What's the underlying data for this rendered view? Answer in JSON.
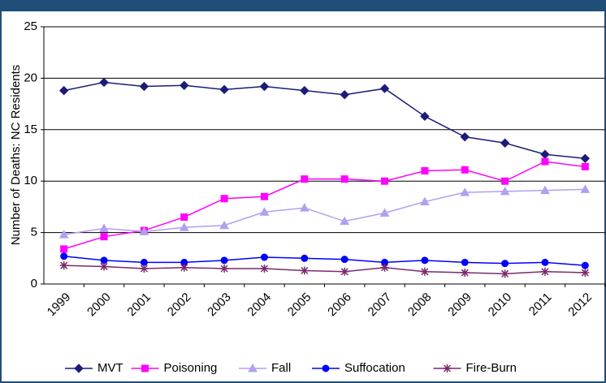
{
  "chart_data": {
    "type": "line",
    "y_label": "Number of Deaths: NC Residents",
    "categories": [
      "1999",
      "2000",
      "2001",
      "2002",
      "2003",
      "2004",
      "2005",
      "2006",
      "2007",
      "2008",
      "2009",
      "2010",
      "2011",
      "2012"
    ],
    "series": [
      {
        "name": "MVT",
        "color": "#1c1c78",
        "marker": "diamond",
        "values": [
          18.8,
          19.6,
          19.2,
          19.3,
          18.9,
          19.2,
          18.8,
          18.4,
          19.0,
          16.3,
          14.3,
          13.7,
          12.6,
          12.2
        ]
      },
      {
        "name": "Poisoning",
        "color": "#ff00ff",
        "marker": "square",
        "values": [
          3.4,
          4.6,
          5.2,
          6.5,
          8.3,
          8.5,
          10.2,
          10.2,
          10.0,
          11.0,
          11.1,
          10.0,
          11.9,
          11.4
        ]
      },
      {
        "name": "Fall",
        "color": "#b49ef0",
        "marker": "triangle",
        "values": [
          4.8,
          5.4,
          5.1,
          5.5,
          5.7,
          7.0,
          7.4,
          6.1,
          6.9,
          8.0,
          8.9,
          9.0,
          9.1,
          9.2
        ]
      },
      {
        "name": "Suffocation",
        "color": "#0000ff",
        "marker": "circle",
        "values": [
          2.7,
          2.3,
          2.1,
          2.1,
          2.3,
          2.6,
          2.5,
          2.4,
          2.1,
          2.3,
          2.1,
          2.0,
          2.1,
          1.8
        ]
      },
      {
        "name": "Fire-Burn",
        "color": "#7a2a6c",
        "marker": "star",
        "values": [
          1.8,
          1.7,
          1.5,
          1.6,
          1.5,
          1.5,
          1.3,
          1.2,
          1.6,
          1.2,
          1.1,
          1.0,
          1.2,
          1.1
        ]
      }
    ],
    "ylim": [
      0,
      25
    ],
    "yticks": [
      0,
      5,
      10,
      15,
      20,
      25
    ],
    "grid": true,
    "legend": "bottom"
  }
}
